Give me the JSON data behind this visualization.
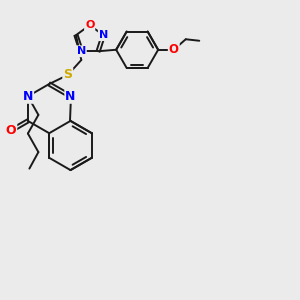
{
  "bg_color": "#ebebeb",
  "bond_color": "#1a1a1a",
  "atom_colors": {
    "N": "#0000ff",
    "O": "#ff0000",
    "S": "#ccaa00",
    "C": "#1a1a1a"
  },
  "lw": 1.4,
  "dbl_off": 0.055,
  "figsize": [
    3.0,
    3.0
  ],
  "dpi": 100
}
